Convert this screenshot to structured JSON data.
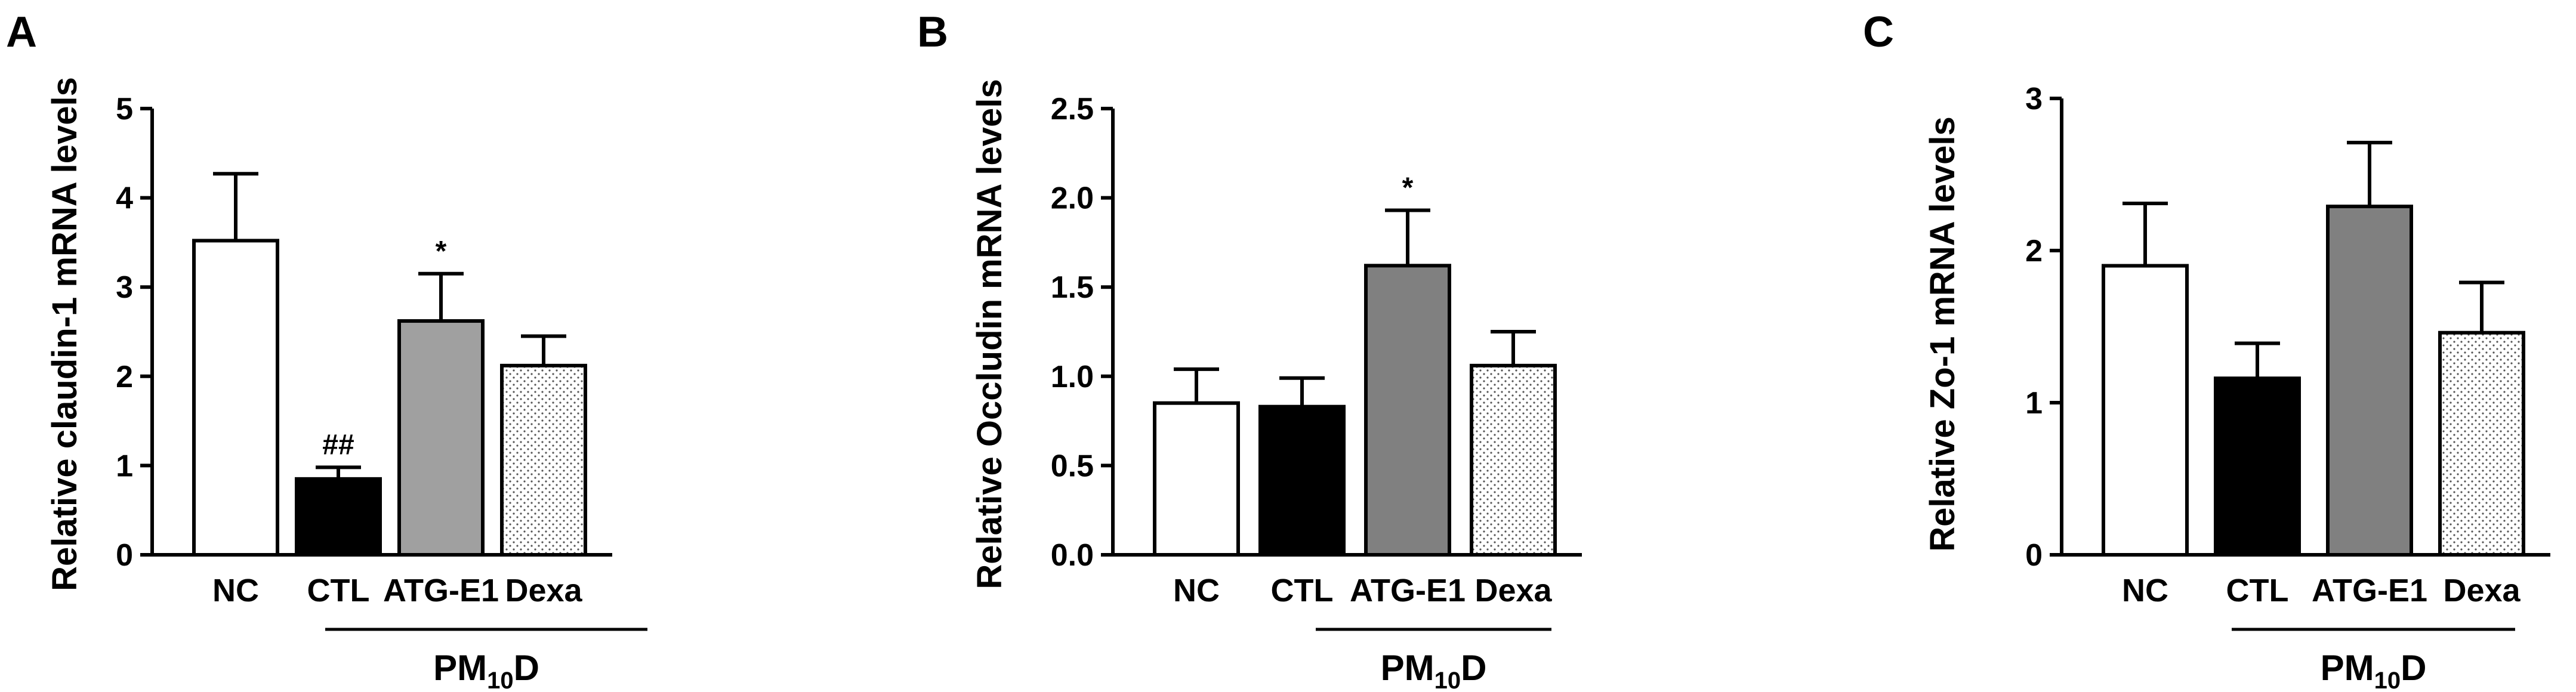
{
  "panels": [
    {
      "letter": "A",
      "chart_data": {
        "type": "bar",
        "ylabel": "Relative claudin-1 mRNA levels",
        "ylim": [
          0,
          5
        ],
        "yticks": [
          "0",
          "1",
          "2",
          "3",
          "4",
          "5"
        ],
        "categories": [
          "NC",
          "CTL",
          "ATG-E1",
          "Dexa"
        ],
        "values": [
          3.52,
          0.85,
          2.62,
          2.12
        ],
        "errors": [
          0.75,
          0.13,
          0.53,
          0.33
        ],
        "annotations": [
          "",
          "##",
          "*",
          ""
        ],
        "bar_styles": [
          "white",
          "black",
          "gray",
          "dotted"
        ],
        "group": {
          "main": "PM",
          "sub": "10",
          "tail": "D",
          "covers": [
            "CTL",
            "ATG-E1",
            "Dexa"
          ]
        }
      }
    },
    {
      "letter": "B",
      "chart_data": {
        "type": "bar",
        "ylabel": "Relative Occludin mRNA levels",
        "ylim": [
          0,
          2.5
        ],
        "yticks": [
          "0.0",
          "0.5",
          "1.0",
          "1.5",
          "2.0",
          "2.5"
        ],
        "categories": [
          "NC",
          "CTL",
          "ATG-E1",
          "Dexa"
        ],
        "values": [
          0.85,
          0.83,
          1.62,
          1.06
        ],
        "errors": [
          0.19,
          0.16,
          0.31,
          0.19
        ],
        "annotations": [
          "",
          "",
          "*",
          ""
        ],
        "bar_styles": [
          "white",
          "black",
          "darkgray",
          "dotted"
        ],
        "group": {
          "main": "PM",
          "sub": "10",
          "tail": "D",
          "covers": [
            "CTL",
            "ATG-E1",
            "Dexa"
          ]
        }
      }
    },
    {
      "letter": "C",
      "chart_data": {
        "type": "bar",
        "ylabel": "Relative Zo-1 mRNA levels",
        "ylim": [
          0,
          3
        ],
        "yticks": [
          "0",
          "1",
          "2",
          "3"
        ],
        "categories": [
          "NC",
          "CTL",
          "ATG-E1",
          "Dexa"
        ],
        "values": [
          1.9,
          1.16,
          2.29,
          1.46
        ],
        "errors": [
          0.41,
          0.23,
          0.42,
          0.33
        ],
        "annotations": [
          "",
          "",
          "",
          ""
        ],
        "bar_styles": [
          "white",
          "black",
          "darkgray",
          "dotted"
        ],
        "group": {
          "main": "PM",
          "sub": "10",
          "tail": "D",
          "covers": [
            "CTL",
            "ATG-E1",
            "Dexa"
          ]
        }
      }
    }
  ],
  "colors": {
    "black": "#000000",
    "white": "#ffffff",
    "gray": "#a0a0a0",
    "darkgray": "#808080",
    "dots": "#555555"
  }
}
